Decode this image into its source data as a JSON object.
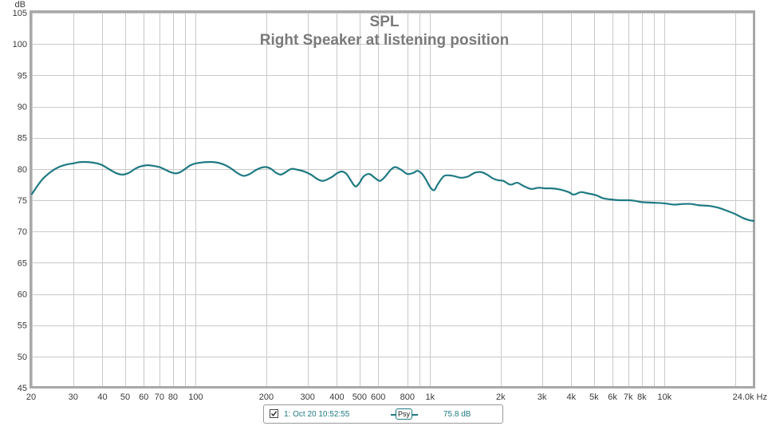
{
  "chart_data": {
    "type": "line",
    "title": "SPL",
    "subtitle": "Right Speaker at listening position",
    "ylabel": "dB",
    "xlabel": "",
    "x_scale": "log",
    "xlim": [
      20,
      24000
    ],
    "ylim": [
      45,
      105
    ],
    "grid": true,
    "y_ticks": [
      45,
      50,
      55,
      60,
      65,
      70,
      75,
      80,
      85,
      90,
      95,
      100,
      105
    ],
    "x_ticks": [
      {
        "value": 20,
        "label": "20"
      },
      {
        "value": 30,
        "label": "30"
      },
      {
        "value": 40,
        "label": "40"
      },
      {
        "value": 50,
        "label": "50"
      },
      {
        "value": 60,
        "label": "60"
      },
      {
        "value": 70,
        "label": "70"
      },
      {
        "value": 80,
        "label": "80"
      },
      {
        "value": 100,
        "label": "100"
      },
      {
        "value": 200,
        "label": "200"
      },
      {
        "value": 300,
        "label": "300"
      },
      {
        "value": 400,
        "label": "400"
      },
      {
        "value": 500,
        "label": "500"
      },
      {
        "value": 600,
        "label": "600"
      },
      {
        "value": 800,
        "label": "800"
      },
      {
        "value": 1000,
        "label": "1k"
      },
      {
        "value": 2000,
        "label": "2k"
      },
      {
        "value": 3000,
        "label": "3k"
      },
      {
        "value": 4000,
        "label": "4k"
      },
      {
        "value": 5000,
        "label": "5k"
      },
      {
        "value": 6000,
        "label": "6k"
      },
      {
        "value": 7000,
        "label": "7k"
      },
      {
        "value": 8000,
        "label": "8k"
      },
      {
        "value": 10000,
        "label": "10k"
      },
      {
        "value": 24000,
        "label": "24.0k Hz"
      }
    ],
    "x_minor_gridlines": [
      90,
      900,
      9000,
      20000
    ],
    "series": [
      {
        "name": "1: Oct 20 10:52:55",
        "color": "#1f7a82",
        "points": [
          [
            20,
            76
          ],
          [
            22,
            78.2
          ],
          [
            24,
            79.5
          ],
          [
            26,
            80.3
          ],
          [
            28,
            80.7
          ],
          [
            30,
            80.9
          ],
          [
            32,
            81.1
          ],
          [
            35,
            81.1
          ],
          [
            38,
            80.9
          ],
          [
            40,
            80.6
          ],
          [
            43,
            79.9
          ],
          [
            46,
            79.3
          ],
          [
            49,
            79.1
          ],
          [
            52,
            79.4
          ],
          [
            55,
            80.0
          ],
          [
            58,
            80.4
          ],
          [
            62,
            80.6
          ],
          [
            66,
            80.5
          ],
          [
            70,
            80.3
          ],
          [
            74,
            79.9
          ],
          [
            78,
            79.5
          ],
          [
            82,
            79.3
          ],
          [
            86,
            79.5
          ],
          [
            90,
            80.0
          ],
          [
            95,
            80.6
          ],
          [
            100,
            80.9
          ],
          [
            110,
            81.1
          ],
          [
            120,
            81.1
          ],
          [
            130,
            80.8
          ],
          [
            140,
            80.2
          ],
          [
            150,
            79.4
          ],
          [
            160,
            78.9
          ],
          [
            170,
            79.2
          ],
          [
            180,
            79.8
          ],
          [
            190,
            80.2
          ],
          [
            200,
            80.3
          ],
          [
            210,
            80.0
          ],
          [
            220,
            79.4
          ],
          [
            230,
            79.1
          ],
          [
            240,
            79.4
          ],
          [
            255,
            80.0
          ],
          [
            270,
            79.9
          ],
          [
            290,
            79.6
          ],
          [
            310,
            79.1
          ],
          [
            330,
            78.4
          ],
          [
            350,
            78.1
          ],
          [
            380,
            78.7
          ],
          [
            400,
            79.3
          ],
          [
            420,
            79.6
          ],
          [
            440,
            79.2
          ],
          [
            460,
            78.1
          ],
          [
            480,
            77.2
          ],
          [
            500,
            77.8
          ],
          [
            520,
            78.8
          ],
          [
            550,
            79.2
          ],
          [
            580,
            78.6
          ],
          [
            610,
            78.1
          ],
          [
            640,
            78.7
          ],
          [
            680,
            79.9
          ],
          [
            710,
            80.3
          ],
          [
            750,
            79.9
          ],
          [
            800,
            79.2
          ],
          [
            850,
            79.4
          ],
          [
            880,
            79.7
          ],
          [
            920,
            79.3
          ],
          [
            960,
            78.3
          ],
          [
            1000,
            77.1
          ],
          [
            1040,
            76.6
          ],
          [
            1080,
            77.6
          ],
          [
            1150,
            78.9
          ],
          [
            1250,
            78.9
          ],
          [
            1350,
            78.6
          ],
          [
            1450,
            78.8
          ],
          [
            1550,
            79.4
          ],
          [
            1650,
            79.5
          ],
          [
            1750,
            79.1
          ],
          [
            1850,
            78.5
          ],
          [
            1950,
            78.2
          ],
          [
            2050,
            78.1
          ],
          [
            2200,
            77.5
          ],
          [
            2350,
            77.8
          ],
          [
            2500,
            77.3
          ],
          [
            2700,
            76.8
          ],
          [
            2900,
            77.0
          ],
          [
            3100,
            76.9
          ],
          [
            3300,
            76.9
          ],
          [
            3600,
            76.7
          ],
          [
            3900,
            76.3
          ],
          [
            4100,
            75.9
          ],
          [
            4400,
            76.3
          ],
          [
            4700,
            76.1
          ],
          [
            5100,
            75.8
          ],
          [
            5500,
            75.3
          ],
          [
            6000,
            75.1
          ],
          [
            6500,
            75.0
          ],
          [
            7000,
            75.0
          ],
          [
            7500,
            74.9
          ],
          [
            8000,
            74.7
          ],
          [
            9000,
            74.6
          ],
          [
            10000,
            74.5
          ],
          [
            11000,
            74.3
          ],
          [
            12000,
            74.4
          ],
          [
            13000,
            74.4
          ],
          [
            14000,
            74.2
          ],
          [
            15500,
            74.1
          ],
          [
            17000,
            73.8
          ],
          [
            18500,
            73.3
          ],
          [
            20000,
            72.8
          ],
          [
            21500,
            72.2
          ],
          [
            23000,
            71.8
          ],
          [
            24000,
            71.7
          ]
        ]
      }
    ]
  },
  "legend": {
    "entry_label": "1: Oct 20 10:52:55",
    "smoothing_label": "Psy",
    "value_label": "75.8 dB",
    "checked": true
  }
}
